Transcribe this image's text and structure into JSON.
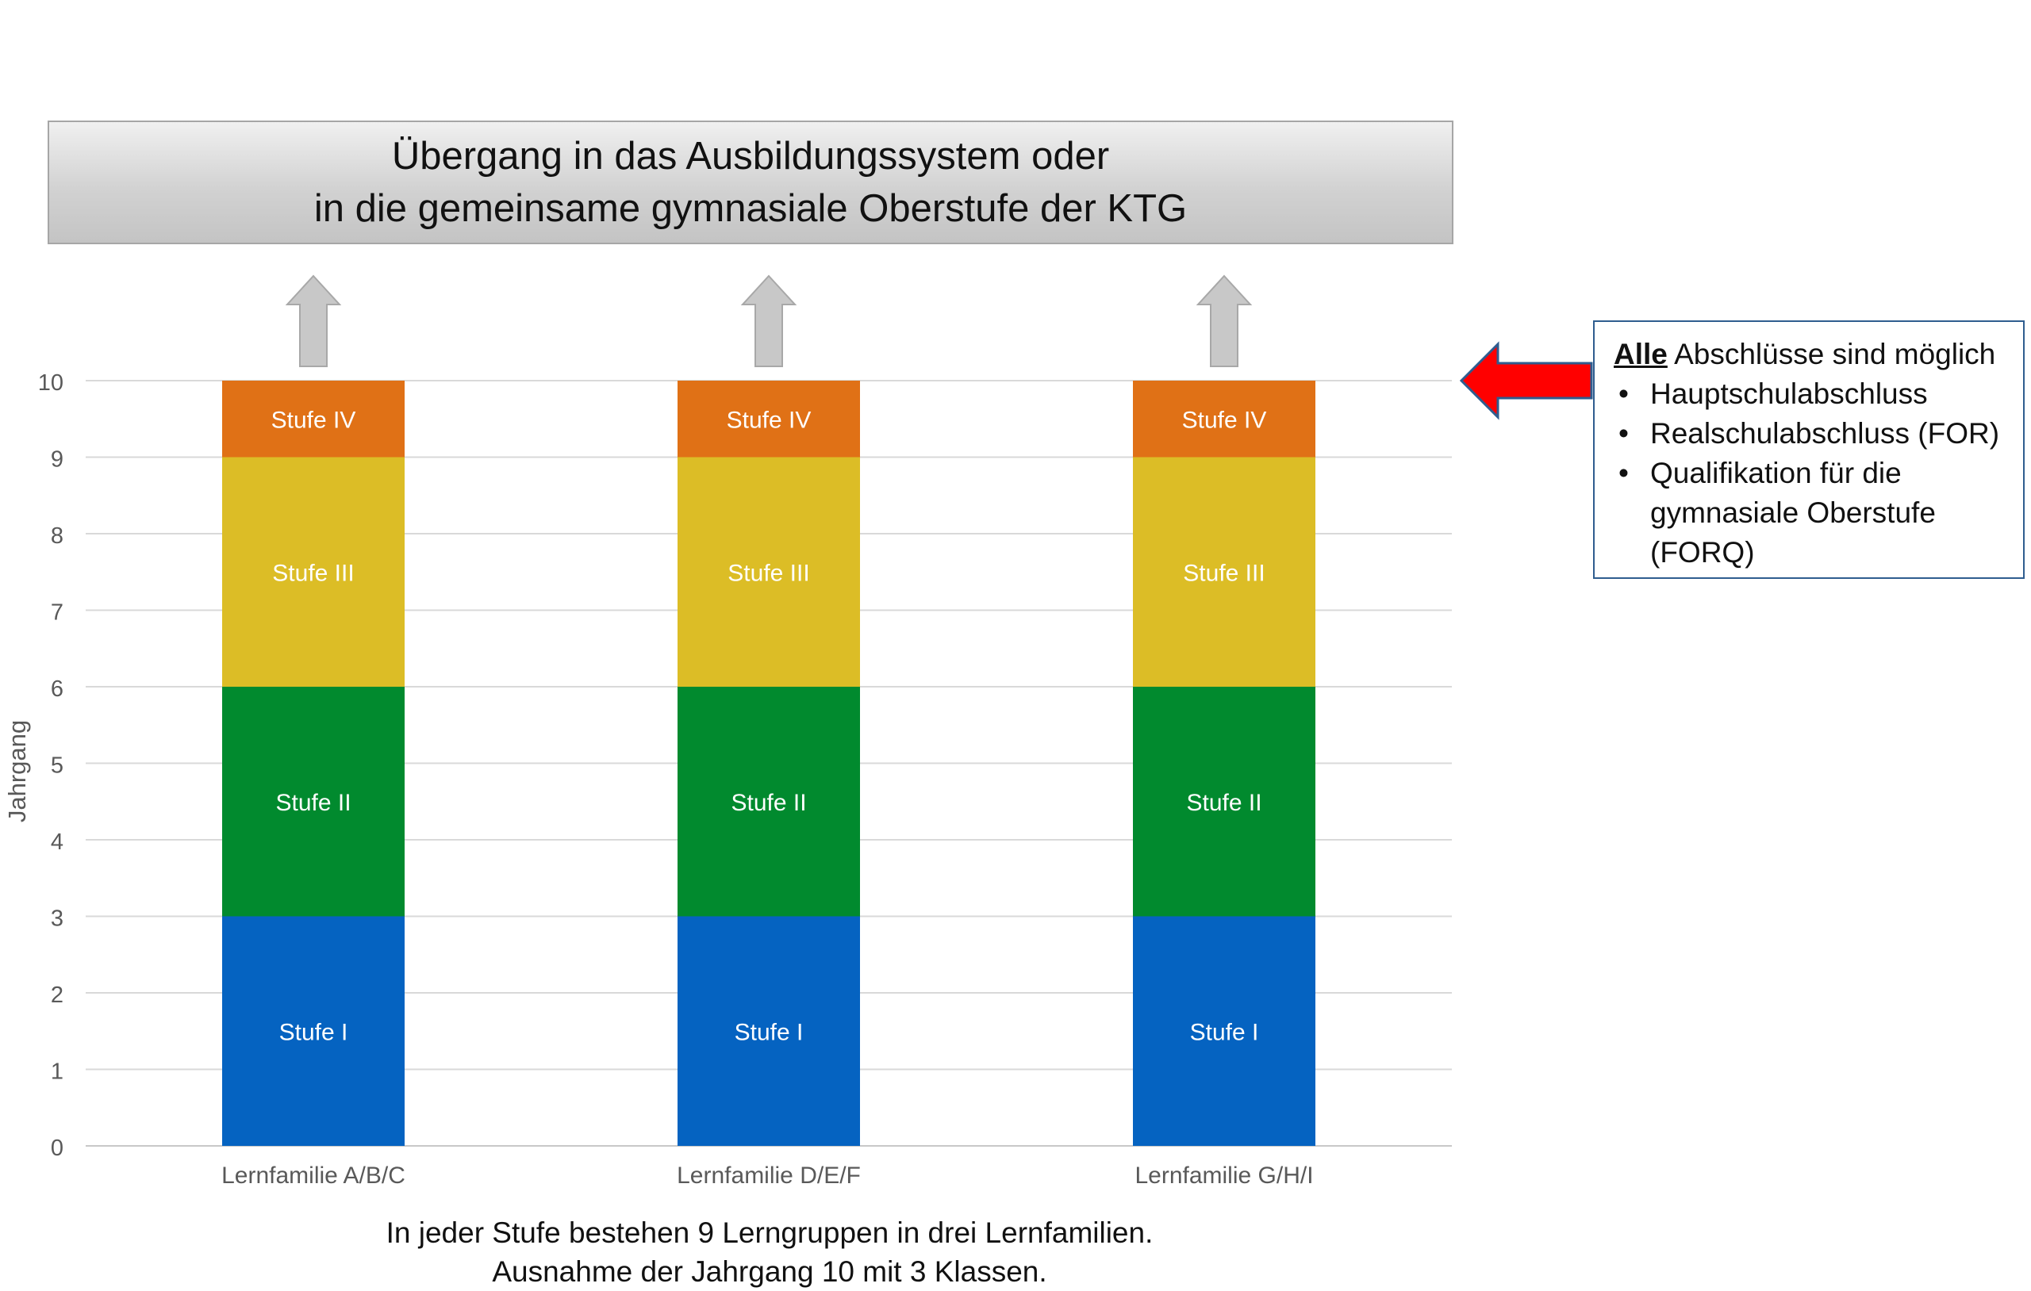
{
  "header": {
    "line1": "Übergang in das Ausbildungssystem oder",
    "line2": "in die gemeinsame gymnasiale Oberstufe der KTG"
  },
  "callout": {
    "heading_strong": "Alle",
    "heading_rest": " Abschlüsse sind möglich",
    "items": [
      "Hauptschulabschluss",
      "Realschulabschluss (FOR)",
      "Qualifikation für die gymnasiale Oberstufe (FORQ)"
    ]
  },
  "footnote": {
    "line1": "In jeder Stufe bestehen 9 Lerngruppen in drei Lernfamilien.",
    "line2": "Ausnahme der Jahrgang 10 mit 3 Klassen."
  },
  "colors": {
    "stufe_1": "#0563c1",
    "stufe_2": "#018a2e",
    "stufe_3": "#dcbd26",
    "stufe_4": "#e07116",
    "callout_arrow": "#ff0000",
    "up_arrow": "#c8c8c8"
  },
  "chart_data": {
    "type": "bar",
    "stacked": true,
    "categories": [
      "Lernfamilie A/B/C",
      "Lernfamilie D/E/F",
      "Lernfamilie G/H/I"
    ],
    "series": [
      {
        "name": "Stufe I",
        "values": [
          3,
          3,
          3
        ]
      },
      {
        "name": "Stufe II",
        "values": [
          3,
          3,
          3
        ]
      },
      {
        "name": "Stufe III",
        "values": [
          3,
          3,
          3
        ]
      },
      {
        "name": "Stufe IV",
        "values": [
          1,
          1,
          1
        ]
      }
    ],
    "ylabel": "Jahrgang",
    "xlabel": "",
    "ylim": [
      0,
      10
    ],
    "yticks": [
      0,
      1,
      2,
      3,
      4,
      5,
      6,
      7,
      8,
      9,
      10
    ],
    "grid": true
  }
}
